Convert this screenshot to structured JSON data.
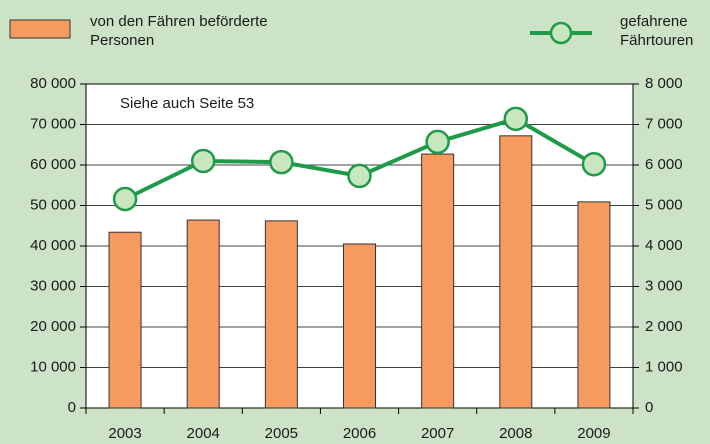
{
  "chart_data": {
    "type": "bar_line",
    "annotation": "Siehe auch Seite 53",
    "categories": [
      "2003",
      "2004",
      "2005",
      "2006",
      "2007",
      "2008",
      "2009"
    ],
    "series": [
      {
        "name": "von den Fähren beförderte Personen",
        "color": "#f79a5f",
        "type": "bar",
        "values": [
          43400,
          46400,
          46200,
          40500,
          62700,
          67200,
          50900
        ]
      },
      {
        "name": "gefahrene Fährtouren",
        "color": "#1e9a48",
        "type": "line",
        "axis": "y2",
        "values": [
          5160,
          6100,
          6070,
          5730,
          6570,
          7140,
          6020
        ]
      }
    ],
    "ylim": [
      0,
      80000
    ],
    "yticks": [
      0,
      {
        "value": 10000,
        "label": "10 000"
      },
      {
        "value": 20000,
        "label": "20 000"
      },
      {
        "value": 30000,
        "label": "30 000"
      },
      {
        "value": 40000,
        "label": "40 000"
      },
      {
        "value": 50000,
        "label": "50 000"
      },
      {
        "value": 60000,
        "label": "60 000"
      },
      {
        "value": 70000,
        "label": "70 000"
      },
      {
        "value": 80000,
        "label": "80 000"
      }
    ],
    "y2lim": [
      0,
      8000
    ],
    "y2ticks": [
      0,
      {
        "value": 1000,
        "label": "1 000"
      },
      {
        "value": 2000,
        "label": "2 000"
      },
      {
        "value": 3000,
        "label": "3 000"
      },
      {
        "value": 4000,
        "label": "4 000"
      },
      {
        "value": 5000,
        "label": "5 000"
      },
      {
        "value": 6000,
        "label": "6 000"
      },
      {
        "value": 7000,
        "label": "7 000"
      },
      {
        "value": 8000,
        "label": "8 000"
      }
    ],
    "grid": true
  }
}
